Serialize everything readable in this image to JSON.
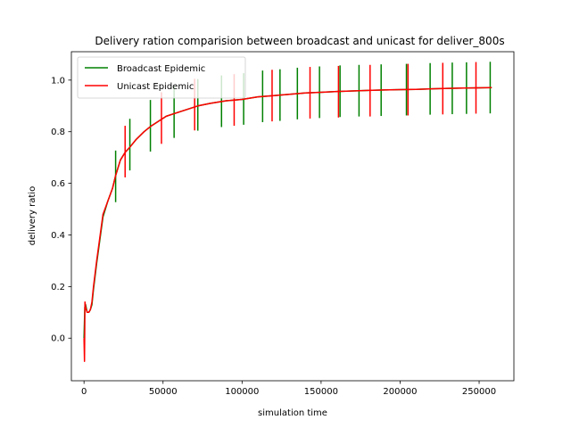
{
  "chart_data": {
    "type": "line",
    "title": "Delivery ration comparision between broadcast and unicast for deliver_800s",
    "xlabel": "simulation time",
    "ylabel": "delivery ratio",
    "xlim": [
      -8000,
      272000
    ],
    "ylim": [
      -0.165,
      1.11
    ],
    "xticks": [
      0,
      50000,
      100000,
      150000,
      200000,
      250000
    ],
    "yticks": [
      0.0,
      0.2,
      0.4,
      0.6,
      0.8,
      1.0
    ],
    "grid": false,
    "legend_position": "upper left",
    "series": [
      {
        "name": "Broadcast Epidemic",
        "color": "#008000",
        "x": [
          0,
          500,
          1000,
          2000,
          3000,
          4000,
          5000,
          6000,
          8000,
          10000,
          12000,
          15000,
          18000,
          20000,
          23000,
          26000,
          29000,
          33000,
          38000,
          42000,
          47000,
          52000,
          57000,
          62000,
          67000,
          72000,
          80000,
          90000,
          100000,
          110000,
          120000,
          130000,
          140000,
          150000,
          160000,
          170000,
          180000,
          190000,
          200000,
          210000,
          220000,
          230000,
          240000,
          250000,
          258000
        ],
        "y": [
          0.0,
          0.12,
          0.13,
          0.1,
          0.1,
          0.11,
          0.13,
          0.19,
          0.29,
          0.38,
          0.47,
          0.53,
          0.58,
          0.63,
          0.69,
          0.72,
          0.74,
          0.77,
          0.8,
          0.82,
          0.84,
          0.86,
          0.87,
          0.88,
          0.89,
          0.9,
          0.91,
          0.92,
          0.925,
          0.935,
          0.94,
          0.945,
          0.95,
          0.953,
          0.956,
          0.958,
          0.96,
          0.962,
          0.963,
          0.964,
          0.966,
          0.968,
          0.969,
          0.97,
          0.971
        ],
        "error_bars": [
          {
            "x": 20000,
            "y": 0.627,
            "err": 0.1
          },
          {
            "x": 29000,
            "y": 0.75,
            "err": 0.1
          },
          {
            "x": 42000,
            "y": 0.823,
            "err": 0.1
          },
          {
            "x": 57000,
            "y": 0.876,
            "err": 0.1
          },
          {
            "x": 72000,
            "y": 0.904,
            "err": 0.1
          },
          {
            "x": 87000,
            "y": 0.918,
            "err": 0.1
          },
          {
            "x": 101000,
            "y": 0.927,
            "err": 0.1
          },
          {
            "x": 113000,
            "y": 0.937,
            "err": 0.1
          },
          {
            "x": 124000,
            "y": 0.942,
            "err": 0.1
          },
          {
            "x": 135000,
            "y": 0.948,
            "err": 0.1
          },
          {
            "x": 149000,
            "y": 0.953,
            "err": 0.1
          },
          {
            "x": 162000,
            "y": 0.957,
            "err": 0.1
          },
          {
            "x": 174000,
            "y": 0.959,
            "err": 0.1
          },
          {
            "x": 188000,
            "y": 0.961,
            "err": 0.1
          },
          {
            "x": 204000,
            "y": 0.963,
            "err": 0.1
          },
          {
            "x": 219000,
            "y": 0.966,
            "err": 0.1
          },
          {
            "x": 233000,
            "y": 0.968,
            "err": 0.1
          },
          {
            "x": 242000,
            "y": 0.969,
            "err": 0.1
          },
          {
            "x": 257000,
            "y": 0.971,
            "err": 0.1
          }
        ]
      },
      {
        "name": "Unicast Epidemic",
        "color": "#ff0000",
        "x": [
          0,
          300,
          600,
          1000,
          2000,
          3000,
          4000,
          5000,
          6000,
          8000,
          10000,
          12000,
          15000,
          18000,
          20000,
          23000,
          26000,
          29000,
          33000,
          38000,
          42000,
          47000,
          52000,
          57000,
          62000,
          67000,
          72000,
          80000,
          90000,
          100000,
          110000,
          120000,
          130000,
          140000,
          150000,
          160000,
          170000,
          180000,
          190000,
          200000,
          210000,
          220000,
          230000,
          240000,
          250000,
          258000
        ],
        "y": [
          0.0,
          -0.09,
          0.14,
          0.12,
          0.1,
          0.1,
          0.11,
          0.14,
          0.2,
          0.3,
          0.39,
          0.48,
          0.53,
          0.58,
          0.63,
          0.69,
          0.72,
          0.74,
          0.77,
          0.8,
          0.82,
          0.84,
          0.86,
          0.87,
          0.88,
          0.89,
          0.9,
          0.91,
          0.92,
          0.925,
          0.935,
          0.94,
          0.945,
          0.95,
          0.953,
          0.956,
          0.958,
          0.96,
          0.962,
          0.963,
          0.964,
          0.966,
          0.968,
          0.969,
          0.97,
          0.971
        ],
        "error_bars": [
          {
            "x": 26000,
            "y": 0.723,
            "err": 0.1
          },
          {
            "x": 49000,
            "y": 0.853,
            "err": 0.1
          },
          {
            "x": 70000,
            "y": 0.905,
            "err": 0.1
          },
          {
            "x": 95000,
            "y": 0.923,
            "err": 0.1
          },
          {
            "x": 119000,
            "y": 0.94,
            "err": 0.1
          },
          {
            "x": 143000,
            "y": 0.951,
            "err": 0.1
          },
          {
            "x": 161000,
            "y": 0.955,
            "err": 0.1
          },
          {
            "x": 181000,
            "y": 0.959,
            "err": 0.1
          },
          {
            "x": 205000,
            "y": 0.963,
            "err": 0.1
          },
          {
            "x": 227000,
            "y": 0.967,
            "err": 0.1
          },
          {
            "x": 248000,
            "y": 0.97,
            "err": 0.1
          }
        ]
      }
    ]
  }
}
